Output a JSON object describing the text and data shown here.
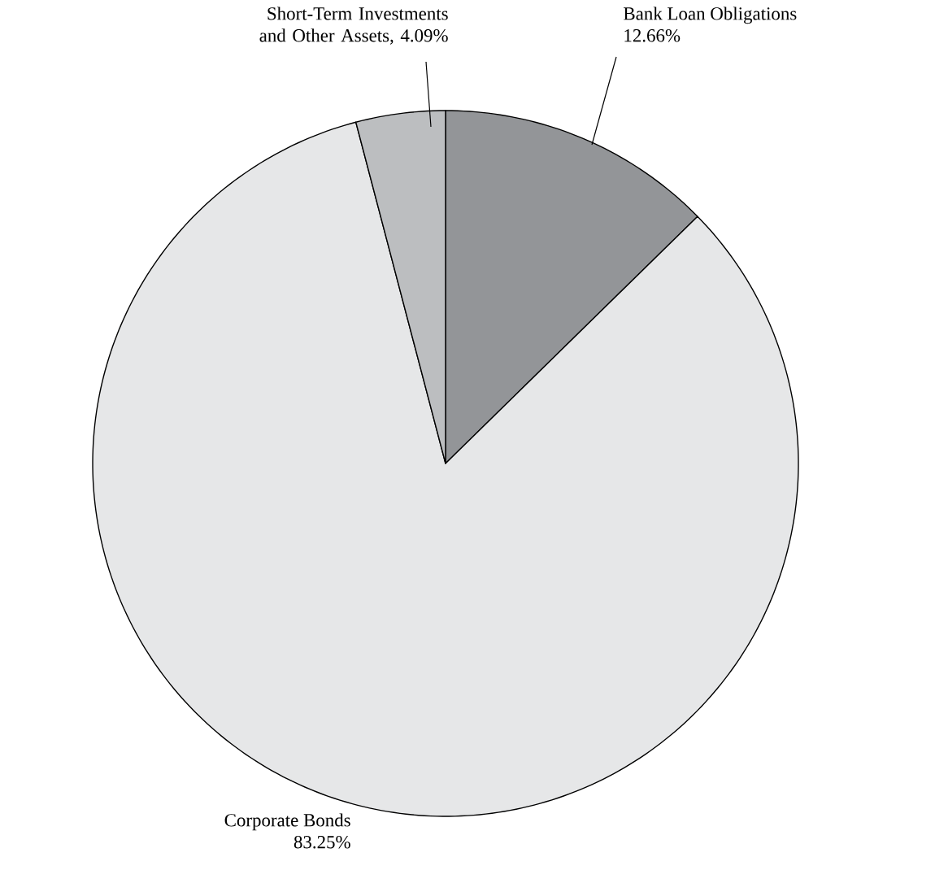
{
  "chart_data": {
    "type": "pie",
    "categories": [
      "Bank Loan Obligations",
      "Corporate Bonds",
      "Short-Term Investments and Other Assets, 4.09%"
    ],
    "values": [
      12.66,
      83.25,
      4.09
    ],
    "value_labels": [
      "12.66%",
      "83.25%",
      null
    ],
    "colors": [
      "#939598",
      "#e6e7e8",
      "#bcbec0"
    ]
  }
}
